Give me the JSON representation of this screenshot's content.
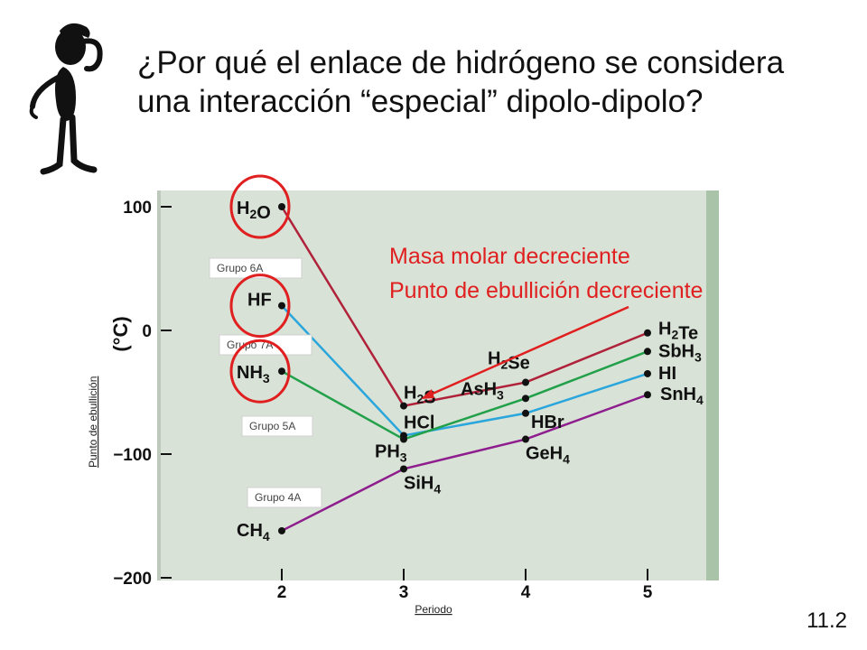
{
  "slide": {
    "title_lines": [
      "¿Por qué el enlace de hidrógeno se considera",
      "una interacción “especial” dipolo-dipolo?"
    ],
    "slide_number": "11.2"
  },
  "colors": {
    "plot_bg": "#d8e2d6",
    "plot_edge": "#a8c3a8",
    "group6": "#b0213a",
    "group7": "#2aa6dc",
    "group5": "#22a04a",
    "group4": "#8e1e8e",
    "highlight": "#e02020"
  },
  "annotation": {
    "line1": "Masa molar decreciente",
    "line2": "Punto de ebullición decreciente"
  },
  "chart_data": {
    "type": "line",
    "xlabel": "Periodo",
    "ylabel": "Punto de ebullición",
    "ylabel_unit": "(°C)",
    "x": [
      2,
      3,
      4,
      5
    ],
    "x_ticks": [
      "2",
      "3",
      "4",
      "5"
    ],
    "y_ticks": [
      "100",
      "0",
      "−100",
      "−200"
    ],
    "y_tick_values": [
      100,
      0,
      -100,
      -200
    ],
    "ylim": [
      -200,
      110
    ],
    "series": [
      {
        "name": "Grupo 6A",
        "color_key": "group6",
        "values": [
          100,
          -61,
          -42,
          -2
        ],
        "labels": [
          "H2O",
          "H2S",
          "H2Se",
          "H2Te"
        ]
      },
      {
        "name": "Grupo 7A",
        "color_key": "group7",
        "values": [
          20,
          -85,
          -67,
          -35
        ],
        "labels": [
          "HF",
          "HCl",
          "HBr",
          "HI"
        ]
      },
      {
        "name": "Grupo 5A",
        "color_key": "group5",
        "values": [
          -33,
          -88,
          -55,
          -17
        ],
        "labels": [
          "NH3",
          "PH3",
          "AsH3",
          "SbH3"
        ]
      },
      {
        "name": "Grupo 4A",
        "color_key": "group4",
        "values": [
          -162,
          -112,
          -88,
          -52
        ],
        "labels": [
          "CH4",
          "SiH4",
          "GeH4",
          "SnH4"
        ]
      }
    ],
    "highlighted": [
      "H2O",
      "HF",
      "NH3"
    ]
  }
}
